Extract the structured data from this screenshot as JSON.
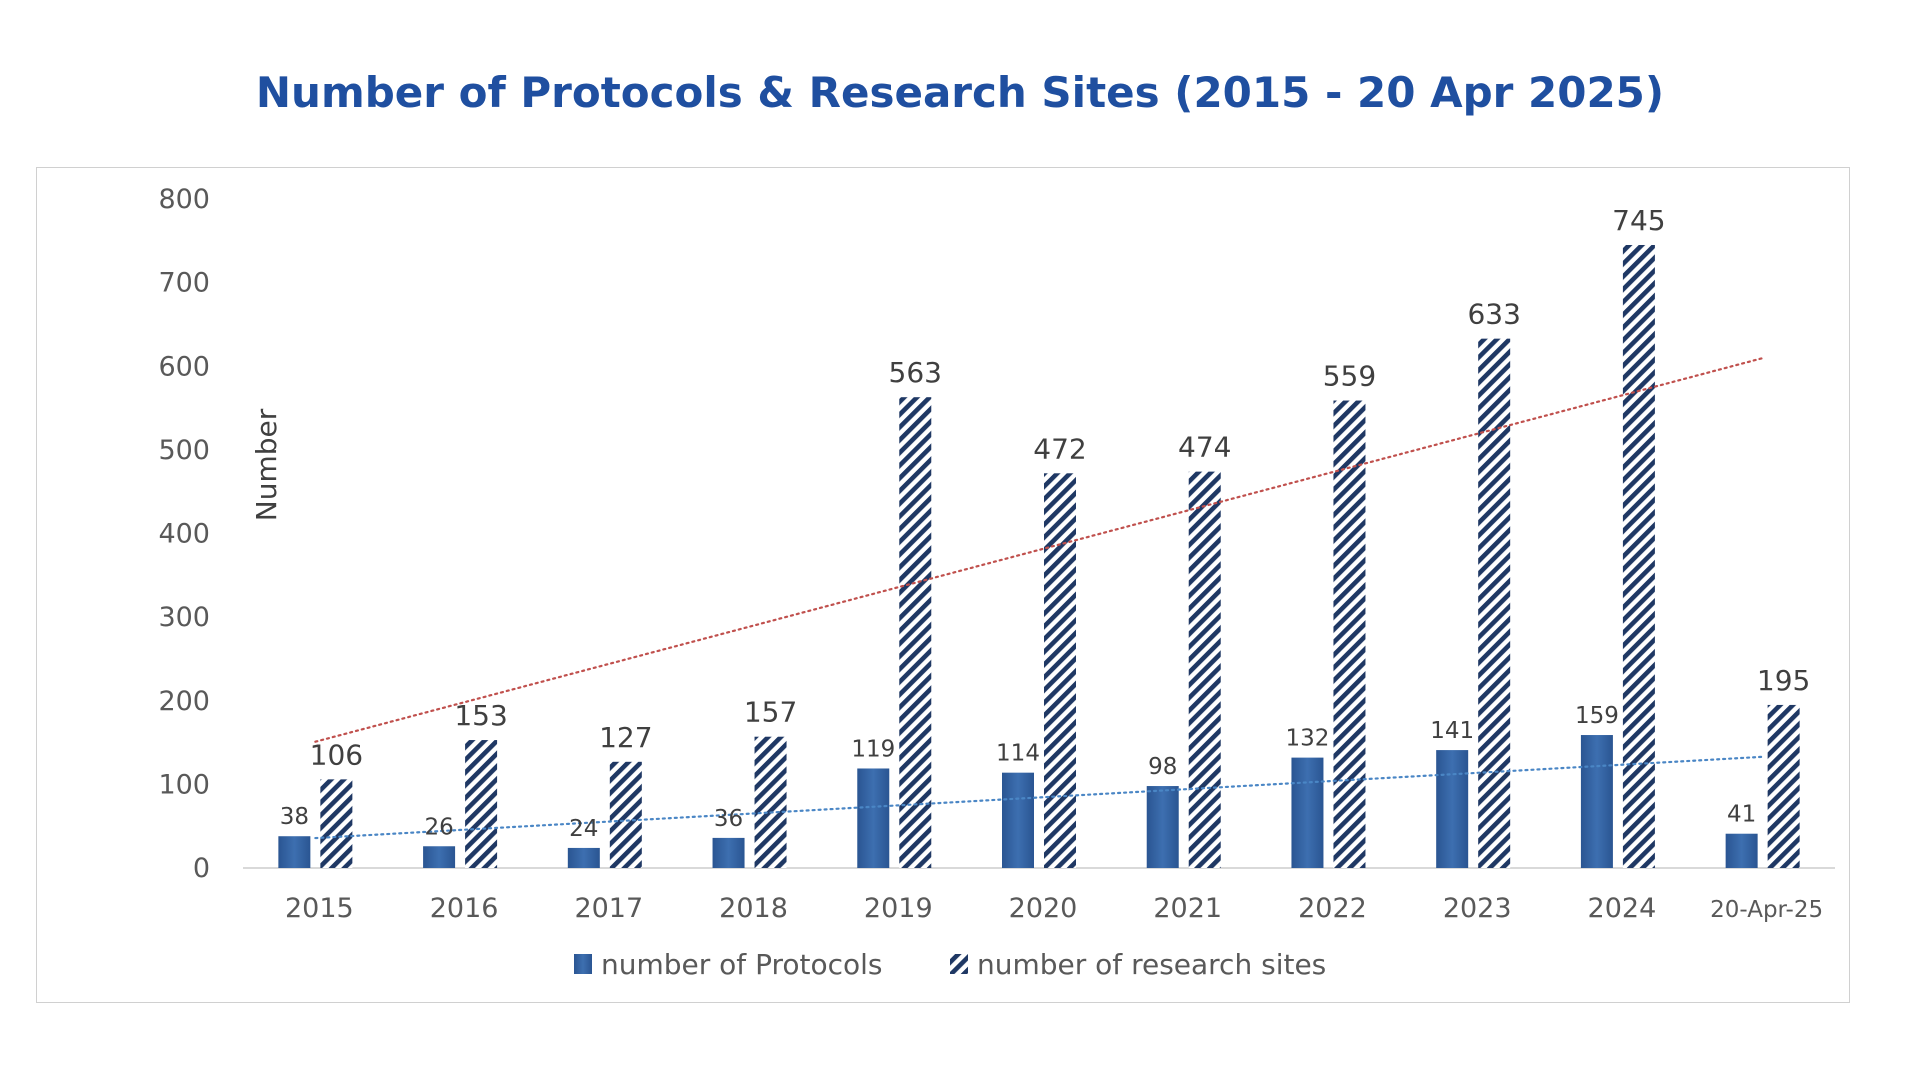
{
  "title": "Number of Protocols & Research Sites (2015 - 20 Apr 2025)",
  "colors": {
    "title": "#1f4fa0",
    "protocols_bar": "#2f5f9e",
    "sites_hatch": "#1f3864",
    "trend_sites": "#c0504d",
    "trend_protocols": "#4a86c5",
    "axis": "#d9d9d9"
  },
  "chart_data": {
    "type": "bar",
    "title": "Number of Protocols & Research Sites (2015 - 20 Apr 2025)",
    "xlabel": "",
    "ylabel": "Number",
    "ylim": [
      0,
      800
    ],
    "yticks": [
      0,
      100,
      200,
      300,
      400,
      500,
      600,
      700,
      800
    ],
    "categories": [
      "2015",
      "2016",
      "2017",
      "2018",
      "2019",
      "2020",
      "2021",
      "2022",
      "2023",
      "2024",
      "20-Apr-25"
    ],
    "series": [
      {
        "name": "number of Protocols",
        "style": "solid",
        "values": [
          38,
          26,
          24,
          36,
          119,
          114,
          98,
          132,
          141,
          159,
          41
        ],
        "trendline": "linear, dotted"
      },
      {
        "name": "number of research sites",
        "style": "hatched",
        "values": [
          106,
          153,
          127,
          157,
          563,
          472,
          474,
          559,
          633,
          745,
          195
        ],
        "trendline": "linear, dotted"
      }
    ],
    "grid": false,
    "legend_position": "bottom"
  }
}
